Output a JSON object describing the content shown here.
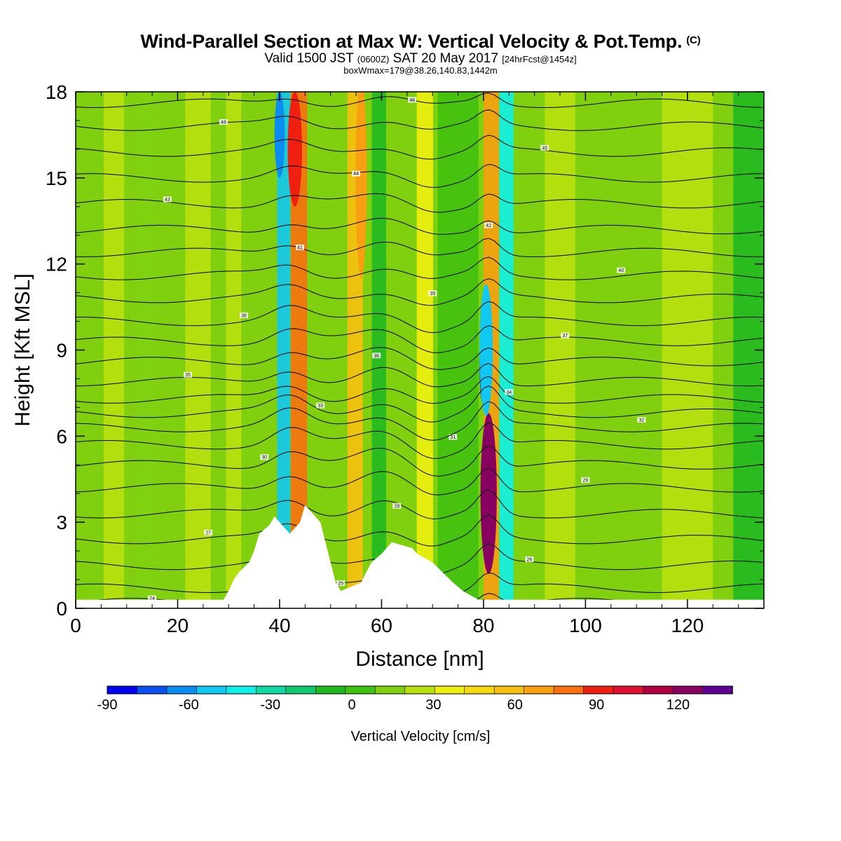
{
  "header": {
    "title": "Wind-Parallel Section at Max W: Vertical Velocity & Pot.Temp.",
    "copyright": "(C)",
    "valid_prefix": "Valid 1500 JST",
    "valid_utc": "(0600Z)",
    "valid_date": "SAT 20 May 2017",
    "forecast": "[24hrFcst@1454z]",
    "boxinfo": "boxWmax=179@38.26,140.83,1442m"
  },
  "chart_data": {
    "type": "heatmap",
    "title": "Wind-Parallel Section at Max W: Vertical Velocity & Pot.Temp.",
    "xlabel": "Distance [nm]",
    "ylabel": "Height [Kft MSL]",
    "xlim": [
      0,
      135
    ],
    "ylim": [
      0,
      18
    ],
    "xticks": [
      "0",
      "20",
      "40",
      "60",
      "80",
      "100",
      "120"
    ],
    "yticks": [
      "0",
      "3",
      "6",
      "9",
      "12",
      "15",
      "18"
    ],
    "colorbar": {
      "label": "Vertical Velocity [cm/s]",
      "ticks": [
        "-90",
        "-60",
        "-30",
        "0",
        "30",
        "60",
        "90",
        "120"
      ],
      "min": -90,
      "max": 140,
      "step": 10,
      "colors": [
        "#0000f0",
        "#0a50f0",
        "#0a8cf0",
        "#10c8f0",
        "#10f0e8",
        "#10d8a0",
        "#10c870",
        "#20b820",
        "#40c010",
        "#80d010",
        "#b8e010",
        "#f0f010",
        "#f8d810",
        "#f8c010",
        "#f8a010",
        "#f87010",
        "#f02010",
        "#e01030",
        "#b00040",
        "#880060",
        "#600090"
      ]
    },
    "velocity_bands": [
      {
        "x": 40.8,
        "w": 1.3,
        "v": -55
      },
      {
        "x": 43.8,
        "w": 1.6,
        "v": 60
      },
      {
        "x": 54.8,
        "w": 1.5,
        "v": 40
      },
      {
        "x": 59.5,
        "w": 1.4,
        "v": -20
      },
      {
        "x": 68.5,
        "w": 1.6,
        "v": 25
      },
      {
        "x": 81.5,
        "w": 1.5,
        "v": 50
      },
      {
        "x": 84.5,
        "w": 1.4,
        "v": -50
      },
      {
        "x": 75.0,
        "w": 4.0,
        "v": -10
      },
      {
        "x": 24.0,
        "w": 2.5,
        "v": 12
      },
      {
        "x": 31.0,
        "w": 1.5,
        "v": 15
      },
      {
        "x": 7.5,
        "w": 2.0,
        "v": 10
      },
      {
        "x": 14.0,
        "w": 2.0,
        "v": 8
      },
      {
        "x": 95.0,
        "w": 3.0,
        "v": 12
      },
      {
        "x": 120.0,
        "w": 5.0,
        "v": 10
      },
      {
        "x": 132.0,
        "w": 3.0,
        "v": -12
      }
    ],
    "velocity_cores": [
      {
        "x": 81.0,
        "y": 3.5,
        "rx": 1.0,
        "ry": 2.3,
        "v": 140
      },
      {
        "x": 81.0,
        "y": 4.0,
        "rx": 1.6,
        "ry": 2.8,
        "v": 100
      },
      {
        "x": 80.0,
        "y": 8.5,
        "rx": 0.8,
        "ry": 1.4,
        "v": -90
      },
      {
        "x": 80.5,
        "y": 9.0,
        "rx": 1.3,
        "ry": 2.3,
        "v": -60
      },
      {
        "x": 43.0,
        "y": 16.0,
        "rx": 1.4,
        "ry": 2.0,
        "v": 70
      },
      {
        "x": 40.0,
        "y": 16.5,
        "rx": 1.0,
        "ry": 1.5,
        "v": -70
      },
      {
        "x": 56.0,
        "y": 15.0,
        "rx": 1.1,
        "ry": 3.5,
        "v": 55
      }
    ],
    "terrain": [
      [
        29,
        0.3
      ],
      [
        30,
        0.6
      ],
      [
        31,
        1.0
      ],
      [
        32,
        1.25
      ],
      [
        34,
        1.6
      ],
      [
        35,
        2.0
      ],
      [
        36,
        2.6
      ],
      [
        38,
        2.9
      ],
      [
        39,
        3.2
      ],
      [
        42,
        2.6
      ],
      [
        44,
        3.0
      ],
      [
        45,
        3.6
      ],
      [
        48,
        3.0
      ],
      [
        49,
        2.3
      ],
      [
        50,
        1.6
      ],
      [
        51,
        0.9
      ],
      [
        52,
        0.6
      ],
      [
        56,
        0.9
      ],
      [
        57,
        1.25
      ],
      [
        58,
        1.6
      ],
      [
        60,
        1.9
      ],
      [
        61,
        2.1
      ],
      [
        62,
        2.3
      ],
      [
        66,
        2.1
      ],
      [
        67,
        1.9
      ],
      [
        70,
        1.6
      ],
      [
        72,
        1.25
      ],
      [
        74,
        0.9
      ],
      [
        76,
        0.6
      ],
      [
        79,
        0.3
      ]
    ],
    "theta_contours": [
      {
        "label": "24",
        "base": 0.2,
        "amp": 0.5
      },
      {
        "label": "25",
        "base": 0.7,
        "amp": 0.6
      },
      {
        "label": "26",
        "base": 1.5,
        "amp": 0.7
      },
      {
        "label": "27",
        "base": 2.4,
        "amp": 0.8
      },
      {
        "label": "28",
        "base": 3.3,
        "amp": 0.9
      },
      {
        "label": "29",
        "base": 4.2,
        "amp": 0.9
      },
      {
        "label": "30",
        "base": 5.0,
        "amp": 0.9
      },
      {
        "label": "31",
        "base": 5.7,
        "amp": 0.9
      },
      {
        "label": "32",
        "base": 6.3,
        "amp": 0.9
      },
      {
        "label": "33",
        "base": 6.8,
        "amp": 0.9
      },
      {
        "label": "34",
        "base": 7.3,
        "amp": 0.8
      },
      {
        "label": "35",
        "base": 7.9,
        "amp": 0.8
      },
      {
        "label": "36",
        "base": 8.6,
        "amp": 0.7
      },
      {
        "label": "37",
        "base": 9.3,
        "amp": 0.7
      },
      {
        "label": "38",
        "base": 10.0,
        "amp": 0.7
      },
      {
        "label": "39",
        "base": 10.8,
        "amp": 0.6
      },
      {
        "label": "40",
        "base": 11.6,
        "amp": 0.6
      },
      {
        "label": "41",
        "base": 12.4,
        "amp": 0.6
      },
      {
        "label": "42",
        "base": 13.2,
        "amp": 0.5
      },
      {
        "label": "43",
        "base": 14.1,
        "amp": 0.5
      },
      {
        "label": "44",
        "base": 15.0,
        "amp": 0.5
      },
      {
        "label": "45",
        "base": 15.9,
        "amp": 0.5
      },
      {
        "label": "46",
        "base": 16.8,
        "amp": 0.5
      },
      {
        "label": "48",
        "base": 17.6,
        "amp": 0.4
      }
    ]
  }
}
